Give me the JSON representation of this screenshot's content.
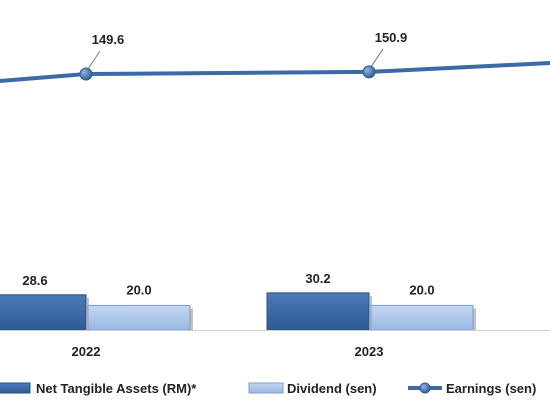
{
  "chart_data": {
    "type": "bar",
    "categories": [
      "2022",
      "2023"
    ],
    "series": [
      {
        "name": "Net Tangible Assets (RM)*",
        "kind": "bar",
        "values": [
          28.6,
          30.2
        ],
        "color": "#3b6aa6"
      },
      {
        "name": "Dividend (sen)",
        "kind": "bar",
        "values": [
          20.0,
          20.0
        ],
        "color": "#a9c4ea"
      },
      {
        "name": "Earnings (sen)",
        "kind": "line",
        "values": [
          149.6,
          150.9
        ],
        "color": "#3b6aa6"
      }
    ],
    "data_labels": {
      "net_tangible_assets": [
        "28.6",
        "30.2"
      ],
      "dividend": [
        "20.0",
        "20.0"
      ],
      "earnings": [
        "149.6",
        "150.9"
      ]
    },
    "legend": {
      "placement": "bottom",
      "items": [
        "Net Tangible Assets (RM)*",
        "Dividend (sen)",
        "Earnings (sen)"
      ]
    },
    "grid": false
  }
}
